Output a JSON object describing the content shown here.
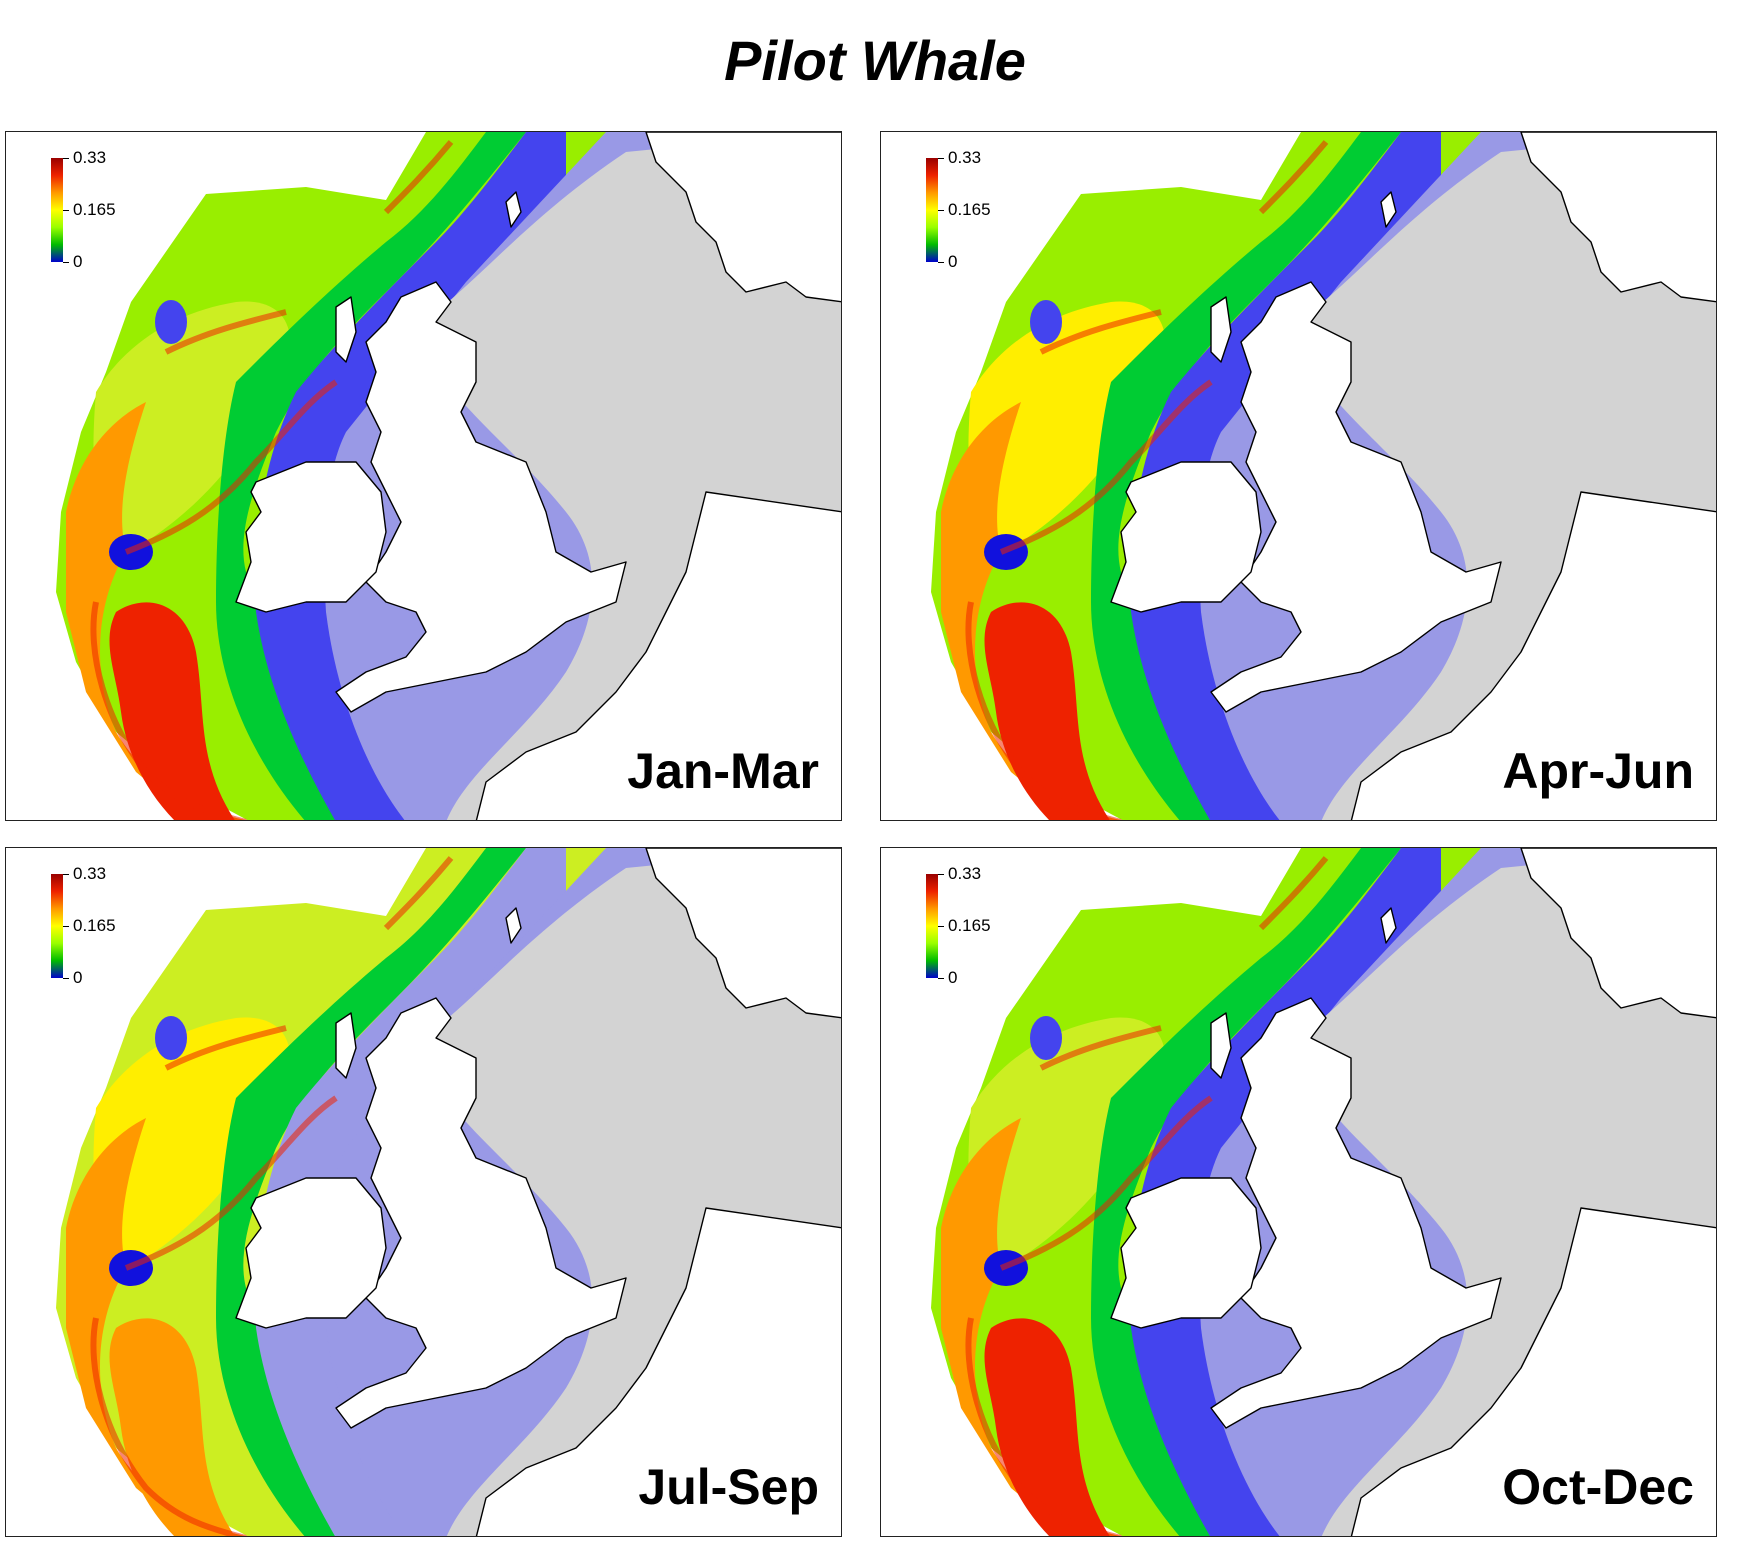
{
  "title": "Pilot Whale",
  "legend": {
    "max_label": "0.33",
    "mid_label": "0.165",
    "min_label": "0",
    "gradient_colors": [
      "#0000cc",
      "#00bb00",
      "#99ff00",
      "#ffff00",
      "#ff9900",
      "#ee2200",
      "#990000"
    ]
  },
  "colors": {
    "land": "#ffffff",
    "coast": "#000000",
    "zero_density_sea": "#d3d3d3",
    "very_low": "#9999e6",
    "low": "#4444ee",
    "deep_blue": "#1111dd",
    "green": "#00cc33",
    "light_green": "#99ee00",
    "yellow_green": "#ccee22",
    "yellow": "#ffee00",
    "orange": "#ff9900",
    "red": "#ee2200"
  },
  "panels": [
    {
      "season": "Jan-Mar"
    },
    {
      "season": "Apr-Jun"
    },
    {
      "season": "Jul-Sep"
    },
    {
      "season": "Oct-Dec"
    }
  ]
}
